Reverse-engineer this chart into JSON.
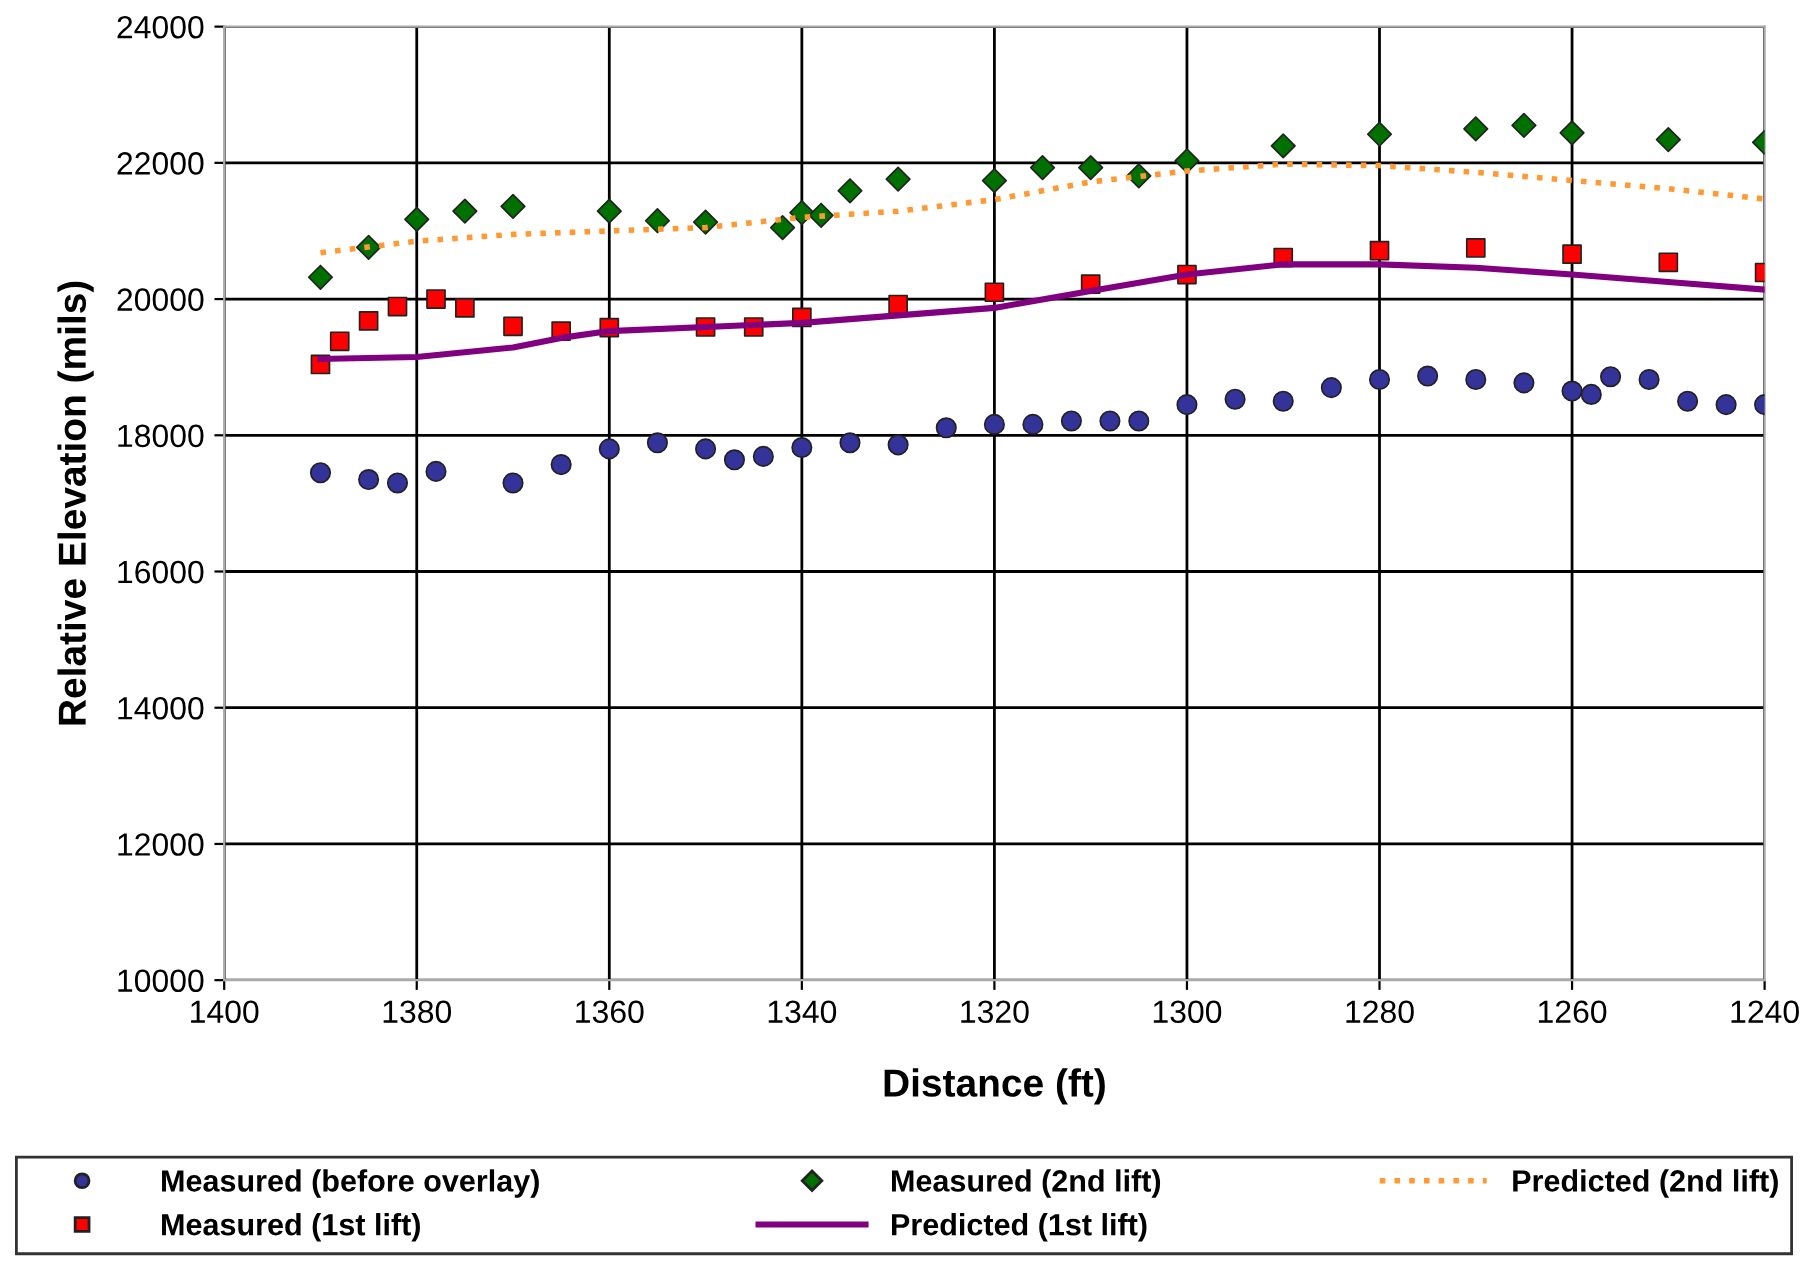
{
  "chart_data": {
    "type": "line",
    "xlabel": "Distance (ft)",
    "ylabel": "Relative Elevation (mils)",
    "xlim": [
      1400,
      1240
    ],
    "xticks": [
      1400,
      1380,
      1360,
      1340,
      1320,
      1300,
      1280,
      1260,
      1240
    ],
    "ylim": [
      10000,
      24000
    ],
    "yticks": [
      10000,
      12000,
      14000,
      16000,
      18000,
      20000,
      22000,
      24000
    ],
    "grid": true,
    "legend": "bottom",
    "series": [
      {
        "name": "Measured (before overlay)",
        "type": "scatter",
        "marker": "circle",
        "color": "#333399",
        "x": [
          1390,
          1385,
          1382,
          1378,
          1370,
          1365,
          1360,
          1355,
          1350,
          1347,
          1344,
          1340,
          1335,
          1330,
          1325,
          1320,
          1316,
          1312,
          1308,
          1305,
          1300,
          1295,
          1290,
          1285,
          1280,
          1275,
          1270,
          1265,
          1260,
          1258,
          1256,
          1252,
          1248,
          1244,
          1240
        ],
        "values": [
          17450,
          17350,
          17300,
          17470,
          17300,
          17570,
          17800,
          17890,
          17800,
          17640,
          17690,
          17820,
          17890,
          17860,
          18110,
          18160,
          18160,
          18210,
          18210,
          18210,
          18450,
          18530,
          18500,
          18700,
          18820,
          18870,
          18820,
          18770,
          18650,
          18600,
          18860,
          18820,
          18500,
          18450,
          18450
        ]
      },
      {
        "name": "Measured (1st lift)",
        "type": "scatter",
        "marker": "square",
        "color": "#ff0000",
        "x": [
          1390,
          1388,
          1385,
          1382,
          1378,
          1375,
          1370,
          1365,
          1360,
          1350,
          1345,
          1340,
          1330,
          1320,
          1310,
          1300,
          1290,
          1280,
          1270,
          1260,
          1250,
          1240
        ],
        "values": [
          19040,
          19380,
          19680,
          19890,
          20000,
          19870,
          19600,
          19530,
          19580,
          19590,
          19590,
          19730,
          19920,
          20100,
          20220,
          20360,
          20610,
          20710,
          20750,
          20660,
          20540,
          20390
        ]
      },
      {
        "name": "Measured (2nd lift)",
        "type": "scatter",
        "marker": "diamond",
        "color": "#007000",
        "x": [
          1390,
          1385,
          1380,
          1375,
          1370,
          1360,
          1355,
          1350,
          1342,
          1340,
          1338,
          1335,
          1330,
          1320,
          1315,
          1310,
          1305,
          1300,
          1290,
          1280,
          1270,
          1265,
          1260,
          1250,
          1240
        ],
        "values": [
          20320,
          20760,
          21170,
          21290,
          21360,
          21290,
          21150,
          21130,
          21050,
          21270,
          21230,
          21590,
          21760,
          21740,
          21930,
          21930,
          21810,
          22030,
          22250,
          22420,
          22500,
          22550,
          22440,
          22340,
          22300
        ]
      },
      {
        "name": "Predicted (1st lift)",
        "line_style": "solid",
        "color": "#800080",
        "x": [
          1390,
          1380,
          1370,
          1365,
          1360,
          1340,
          1320,
          1310,
          1300,
          1290,
          1280,
          1270,
          1260,
          1250,
          1240
        ],
        "values": [
          19120,
          19150,
          19290,
          19430,
          19530,
          19650,
          19870,
          20120,
          20360,
          20510,
          20510,
          20460,
          20360,
          20250,
          20140
        ]
      },
      {
        "name": "Predicted (2nd lift)",
        "line_style": "dotted",
        "color": "#ff9933",
        "x": [
          1390,
          1380,
          1370,
          1360,
          1350,
          1340,
          1330,
          1320,
          1310,
          1300,
          1290,
          1280,
          1270,
          1260,
          1250,
          1240
        ],
        "values": [
          20680,
          20850,
          20950,
          21000,
          21050,
          21200,
          21290,
          21460,
          21720,
          21880,
          21980,
          21960,
          21860,
          21740,
          21620,
          21470
        ]
      }
    ]
  }
}
